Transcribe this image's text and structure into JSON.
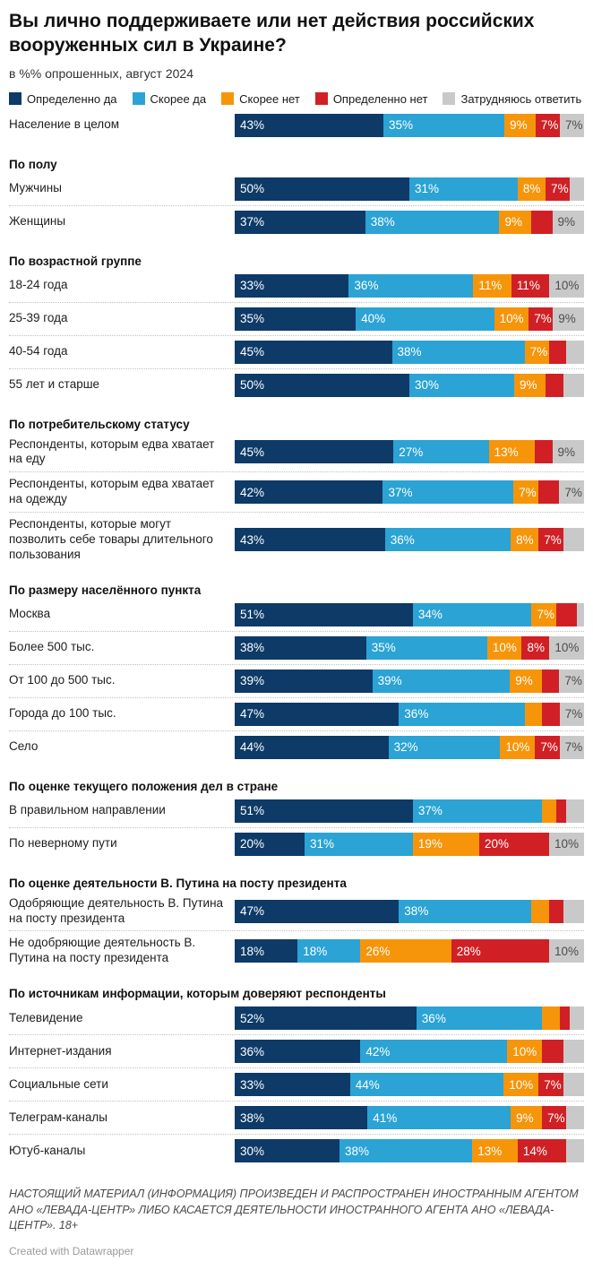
{
  "title": "Вы лично поддерживаете или нет действия российских вооруженных сил в Украине?",
  "subtitle": "в %% опрошенных, август 2024",
  "chart_data": {
    "type": "bar",
    "stacked": true,
    "orientation": "horizontal",
    "unit": "%",
    "xlim": [
      0,
      100
    ],
    "grid": false,
    "legend_position": "top",
    "label_threshold": 7,
    "series_names": [
      "Определенно да",
      "Скорее да",
      "Скорее нет",
      "Определенно нет",
      "Затрудняюсь ответить"
    ],
    "series_colors": [
      "#0d3a67",
      "#2ba3d4",
      "#f6950a",
      "#d02025",
      "#c9c9c9"
    ],
    "groups": [
      {
        "header": "",
        "rows": [
          {
            "label": "Население в целом",
            "values": [
              43,
              35,
              9,
              7,
              7
            ]
          }
        ]
      },
      {
        "header": "По полу",
        "rows": [
          {
            "label": "Мужчины",
            "values": [
              50,
              31,
              8,
              7,
              4
            ]
          },
          {
            "label": "Женщины",
            "values": [
              37,
              38,
              9,
              6,
              9
            ]
          }
        ]
      },
      {
        "header": "По возрастной группе",
        "rows": [
          {
            "label": "18-24 года",
            "values": [
              33,
              36,
              11,
              11,
              10
            ]
          },
          {
            "label": "25-39 года",
            "values": [
              35,
              40,
              10,
              7,
              9
            ]
          },
          {
            "label": "40-54 года",
            "values": [
              45,
              38,
              7,
              5,
              5
            ]
          },
          {
            "label": "55 лет и старше",
            "values": [
              50,
              30,
              9,
              5,
              6
            ]
          }
        ]
      },
      {
        "header": "По потребительскому статусу",
        "rows": [
          {
            "label": "Респонденты, которым едва хватает на еду",
            "values": [
              45,
              27,
              13,
              5,
              9
            ]
          },
          {
            "label": "Респонденты, которым едва хватает на одежду",
            "values": [
              42,
              37,
              7,
              6,
              7
            ]
          },
          {
            "label": "Респонденты, которые могут позволить себе товары длительного пользования",
            "values": [
              43,
              36,
              8,
              7,
              6
            ]
          }
        ]
      },
      {
        "header": "По размеру населённого пункта",
        "rows": [
          {
            "label": "Москва",
            "values": [
              51,
              34,
              7,
              6,
              2
            ]
          },
          {
            "label": "Более 500 тыс.",
            "values": [
              38,
              35,
              10,
              8,
              10
            ]
          },
          {
            "label": "От 100 до 500 тыс.",
            "values": [
              39,
              39,
              9,
              5,
              7
            ]
          },
          {
            "label": "Города до 100 тыс.",
            "values": [
              47,
              36,
              5,
              5,
              7
            ]
          },
          {
            "label": "Село",
            "values": [
              44,
              32,
              10,
              7,
              7
            ]
          }
        ]
      },
      {
        "header": "По оценке текущего положения дел в стране",
        "rows": [
          {
            "label": "В правильном направлении",
            "values": [
              51,
              37,
              4,
              3,
              5
            ]
          },
          {
            "label": "По неверному пути",
            "values": [
              20,
              31,
              19,
              20,
              10
            ]
          }
        ]
      },
      {
        "header": "По оценке деятельности В. Путина на посту президента",
        "rows": [
          {
            "label": "Одобряющие деятельность В. Путина на посту президента",
            "values": [
              47,
              38,
              5,
              4,
              6
            ]
          },
          {
            "label": "Не одобряющие деятельность В. Путина на посту президента",
            "values": [
              18,
              18,
              26,
              28,
              10
            ]
          }
        ]
      },
      {
        "header": "По источникам информации, которым доверяют респонденты",
        "rows": [
          {
            "label": "Телевидение",
            "values": [
              52,
              36,
              5,
              3,
              4
            ]
          },
          {
            "label": "Интернет-издания",
            "values": [
              36,
              42,
              10,
              6,
              6
            ]
          },
          {
            "label": "Социальные сети",
            "values": [
              33,
              44,
              10,
              7,
              6
            ]
          },
          {
            "label": "Телеграм-каналы",
            "values": [
              38,
              41,
              9,
              7,
              5
            ]
          },
          {
            "label": "Ютуб-каналы",
            "values": [
              30,
              38,
              13,
              14,
              5
            ]
          }
        ]
      }
    ]
  },
  "footer": {
    "disclaimer": "НАСТОЯЩИЙ МАТЕРИАЛ (ИНФОРМАЦИЯ) ПРОИЗВЕДЕН И РАСПРОСТРАНЕН ИНОСТРАННЫМ АГЕНТОМ АНО «ЛЕВАДА-ЦЕНТР» ЛИБО КАСАЕТСЯ ДЕЯТЕЛЬНОСТИ ИНОСТРАННОГО АГЕНТА АНО «ЛЕВАДА-ЦЕНТР». 18+",
    "credit": "Created with Datawrapper"
  }
}
